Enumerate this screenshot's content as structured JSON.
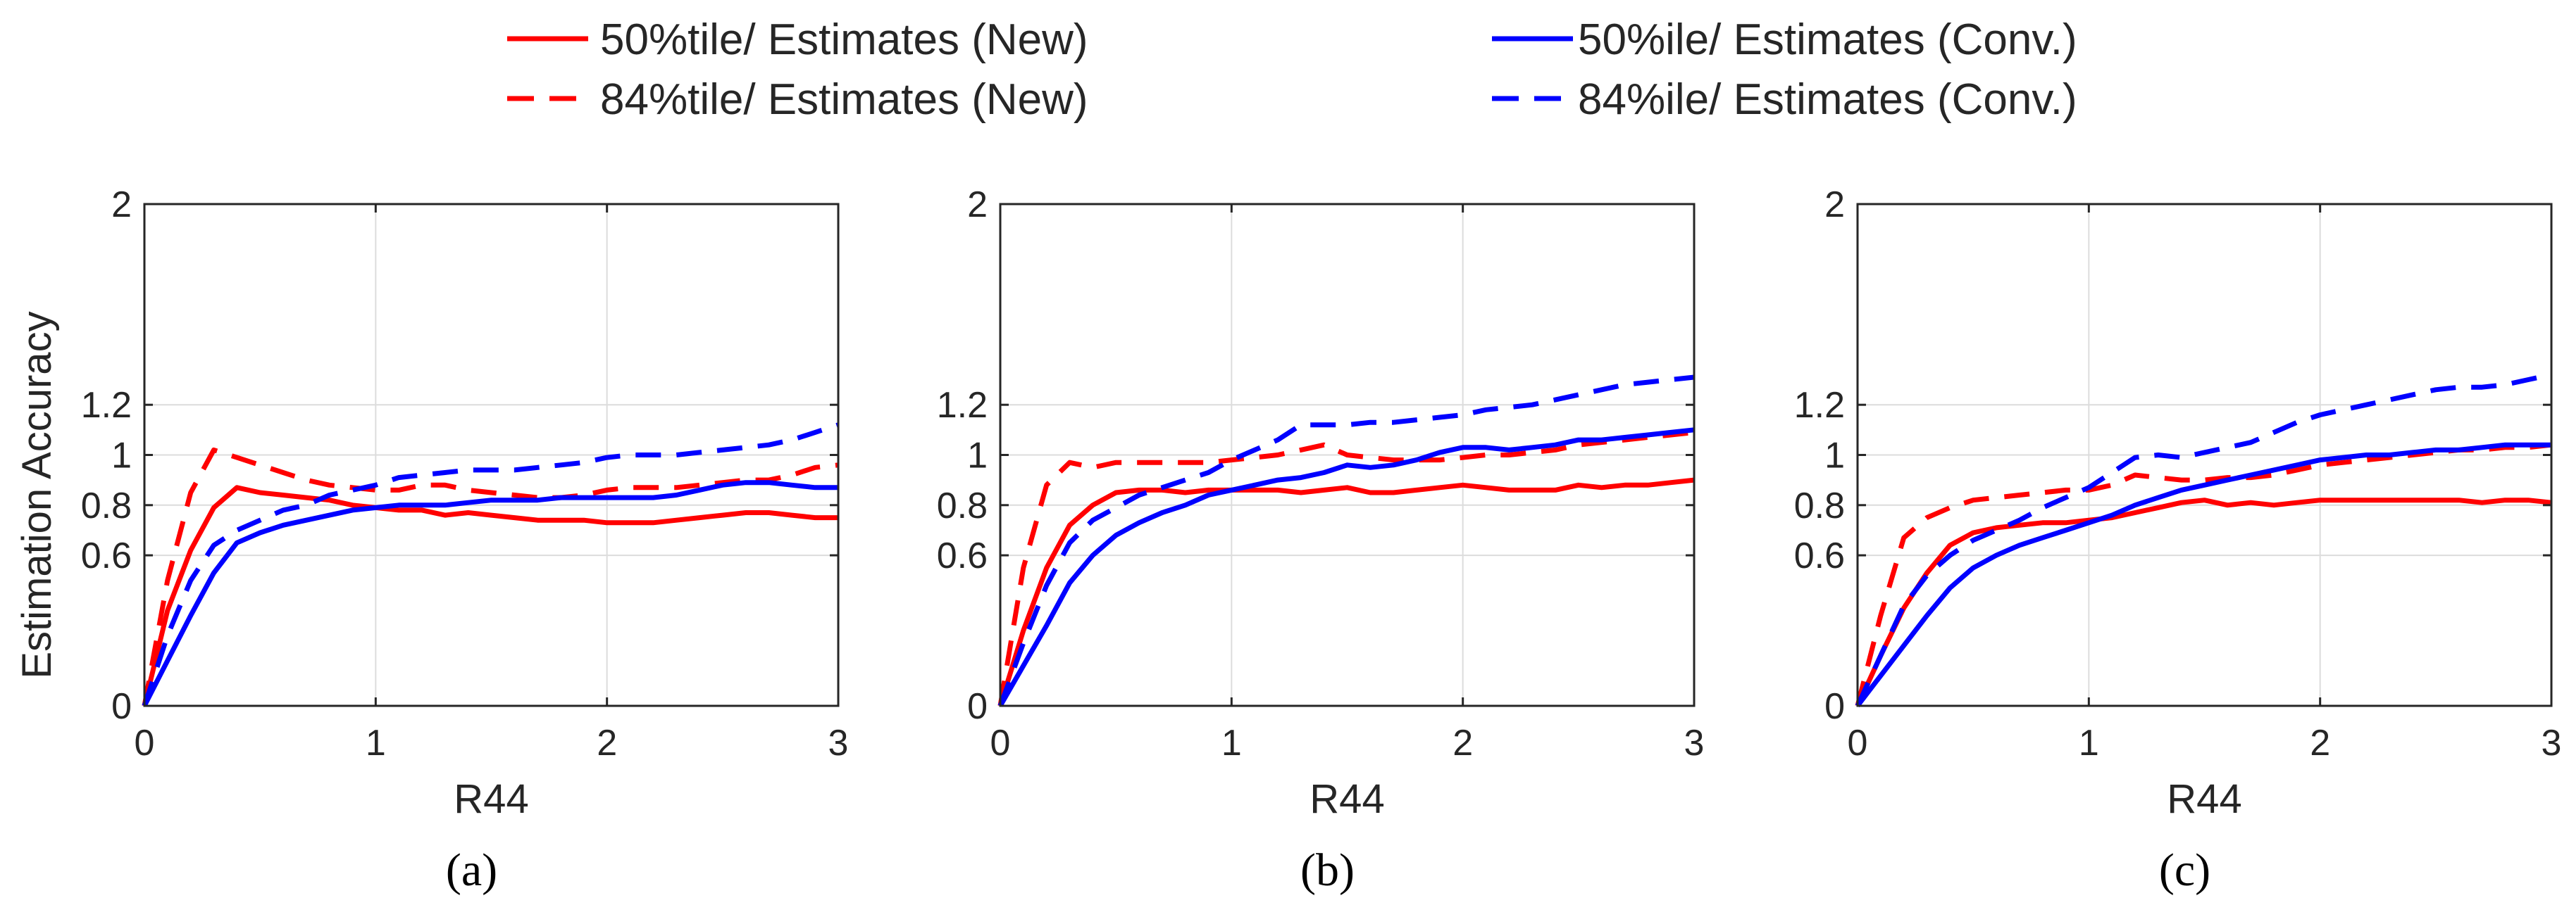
{
  "legend": {
    "placement": "top",
    "entries": [
      {
        "label": "50%tile/ Estimates (New)",
        "color": "#ff0000",
        "dash": "solid"
      },
      {
        "label": "84%tile/ Estimates (New)",
        "color": "#ff0000",
        "dash": "dashed"
      },
      {
        "label": "50%ile/ Estimates (Conv.)",
        "color": "#0000ff",
        "dash": "solid"
      },
      {
        "label": "84%ile/ Estimates (Conv.)",
        "color": "#0000ff",
        "dash": "dashed"
      }
    ]
  },
  "colors": {
    "new": "#ff0000",
    "conv": "#0000ff",
    "axis": "#262626",
    "grid": "#dcdcdc"
  },
  "chart_data": [
    {
      "type": "line",
      "caption": "(a)",
      "xlabel": "R44",
      "ylabel": "Estimation Accuracy",
      "xlim": [
        0,
        3
      ],
      "ylim": [
        0,
        2
      ],
      "xticks": [
        0,
        1,
        2,
        3
      ],
      "yticks": [
        0,
        0.6,
        0.8,
        1,
        1.2,
        2
      ],
      "ytick_labels": [
        "0",
        "0.6",
        "0.8",
        "1",
        "1.2",
        "2"
      ],
      "grid": true,
      "x": [
        0,
        0.1,
        0.2,
        0.3,
        0.4,
        0.5,
        0.6,
        0.7,
        0.8,
        0.9,
        1.0,
        1.1,
        1.2,
        1.3,
        1.4,
        1.5,
        1.6,
        1.7,
        1.8,
        1.9,
        2.0,
        2.1,
        2.2,
        2.3,
        2.4,
        2.5,
        2.6,
        2.7,
        2.8,
        2.9,
        3.0
      ],
      "series": [
        {
          "name": "50%tile/ Estimates (New)",
          "color": "#ff0000",
          "dash": "solid",
          "values": [
            0,
            0.38,
            0.62,
            0.79,
            0.87,
            0.85,
            0.84,
            0.83,
            0.82,
            0.8,
            0.79,
            0.78,
            0.78,
            0.76,
            0.77,
            0.76,
            0.75,
            0.74,
            0.74,
            0.74,
            0.73,
            0.73,
            0.73,
            0.74,
            0.75,
            0.76,
            0.77,
            0.77,
            0.76,
            0.75,
            0.75
          ]
        },
        {
          "name": "84%tile/ Estimates (New)",
          "color": "#ff0000",
          "dash": "dashed",
          "values": [
            0,
            0.5,
            0.85,
            1.02,
            0.99,
            0.96,
            0.93,
            0.9,
            0.88,
            0.87,
            0.86,
            0.86,
            0.88,
            0.88,
            0.86,
            0.85,
            0.84,
            0.83,
            0.83,
            0.84,
            0.86,
            0.87,
            0.87,
            0.87,
            0.88,
            0.89,
            0.9,
            0.9,
            0.92,
            0.95,
            0.96
          ]
        },
        {
          "name": "50%ile/ Estimates (Conv.)",
          "color": "#0000ff",
          "dash": "solid",
          "values": [
            0,
            0.18,
            0.36,
            0.53,
            0.65,
            0.69,
            0.72,
            0.74,
            0.76,
            0.78,
            0.79,
            0.8,
            0.8,
            0.8,
            0.81,
            0.82,
            0.82,
            0.82,
            0.83,
            0.83,
            0.83,
            0.83,
            0.83,
            0.84,
            0.86,
            0.88,
            0.89,
            0.89,
            0.88,
            0.87,
            0.87
          ]
        },
        {
          "name": "84%ile/ Estimates (Conv.)",
          "color": "#0000ff",
          "dash": "dashed",
          "values": [
            0,
            0.28,
            0.5,
            0.64,
            0.7,
            0.74,
            0.78,
            0.8,
            0.84,
            0.86,
            0.88,
            0.91,
            0.92,
            0.93,
            0.94,
            0.94,
            0.94,
            0.95,
            0.96,
            0.97,
            0.99,
            1.0,
            1.0,
            1.0,
            1.01,
            1.02,
            1.03,
            1.04,
            1.06,
            1.09,
            1.12
          ]
        }
      ]
    },
    {
      "type": "line",
      "caption": "(b)",
      "xlabel": "R44",
      "ylabel": "",
      "xlim": [
        0,
        3
      ],
      "ylim": [
        0,
        2
      ],
      "xticks": [
        0,
        1,
        2,
        3
      ],
      "yticks": [
        0,
        0.6,
        0.8,
        1,
        1.2,
        2
      ],
      "ytick_labels": [
        "0",
        "0.6",
        "0.8",
        "1",
        "1.2",
        "2"
      ],
      "grid": true,
      "x": [
        0,
        0.1,
        0.2,
        0.3,
        0.4,
        0.5,
        0.6,
        0.7,
        0.8,
        0.9,
        1.0,
        1.1,
        1.2,
        1.3,
        1.4,
        1.5,
        1.6,
        1.7,
        1.8,
        1.9,
        2.0,
        2.1,
        2.2,
        2.3,
        2.4,
        2.5,
        2.6,
        2.7,
        2.8,
        2.9,
        3.0
      ],
      "series": [
        {
          "name": "50%tile/ Estimates (New)",
          "color": "#ff0000",
          "dash": "solid",
          "values": [
            0,
            0.3,
            0.55,
            0.72,
            0.8,
            0.85,
            0.86,
            0.86,
            0.85,
            0.86,
            0.86,
            0.86,
            0.86,
            0.85,
            0.86,
            0.87,
            0.85,
            0.85,
            0.86,
            0.87,
            0.88,
            0.87,
            0.86,
            0.86,
            0.86,
            0.88,
            0.87,
            0.88,
            0.88,
            0.89,
            0.9
          ]
        },
        {
          "name": "84%tile/ Estimates (New)",
          "color": "#ff0000",
          "dash": "dashed",
          "values": [
            0,
            0.55,
            0.88,
            0.97,
            0.95,
            0.97,
            0.97,
            0.97,
            0.97,
            0.97,
            0.98,
            0.99,
            1.0,
            1.02,
            1.04,
            1.0,
            0.99,
            0.98,
            0.98,
            0.98,
            0.99,
            1.0,
            1.0,
            1.01,
            1.02,
            1.04,
            1.05,
            1.06,
            1.07,
            1.08,
            1.09
          ]
        },
        {
          "name": "50%ile/ Estimates (Conv.)",
          "color": "#0000ff",
          "dash": "solid",
          "values": [
            0,
            0.16,
            0.32,
            0.49,
            0.6,
            0.68,
            0.73,
            0.77,
            0.8,
            0.84,
            0.86,
            0.88,
            0.9,
            0.91,
            0.93,
            0.96,
            0.95,
            0.96,
            0.98,
            1.01,
            1.03,
            1.03,
            1.02,
            1.03,
            1.04,
            1.06,
            1.06,
            1.07,
            1.08,
            1.09,
            1.1
          ]
        },
        {
          "name": "84%ile/ Estimates (Conv.)",
          "color": "#0000ff",
          "dash": "dashed",
          "values": [
            0,
            0.25,
            0.48,
            0.65,
            0.74,
            0.79,
            0.84,
            0.87,
            0.9,
            0.93,
            0.98,
            1.02,
            1.06,
            1.12,
            1.12,
            1.12,
            1.13,
            1.13,
            1.14,
            1.15,
            1.16,
            1.18,
            1.19,
            1.2,
            1.22,
            1.24,
            1.26,
            1.28,
            1.29,
            1.3,
            1.31
          ]
        }
      ]
    },
    {
      "type": "line",
      "caption": "(c)",
      "xlabel": "R44",
      "ylabel": "",
      "xlim": [
        0,
        3
      ],
      "ylim": [
        0,
        2
      ],
      "xticks": [
        0,
        1,
        2,
        3
      ],
      "yticks": [
        0,
        0.6,
        0.8,
        1,
        1.2,
        2
      ],
      "ytick_labels": [
        "0",
        "0.6",
        "0.8",
        "1",
        "1.2",
        "2"
      ],
      "grid": true,
      "x": [
        0,
        0.1,
        0.2,
        0.3,
        0.4,
        0.5,
        0.6,
        0.7,
        0.8,
        0.9,
        1.0,
        1.1,
        1.2,
        1.3,
        1.4,
        1.5,
        1.6,
        1.7,
        1.8,
        1.9,
        2.0,
        2.1,
        2.2,
        2.3,
        2.4,
        2.5,
        2.6,
        2.7,
        2.8,
        2.9,
        3.0
      ],
      "series": [
        {
          "name": "50%tile/ Estimates (New)",
          "color": "#ff0000",
          "dash": "solid",
          "values": [
            0,
            0.2,
            0.39,
            0.53,
            0.64,
            0.69,
            0.71,
            0.72,
            0.73,
            0.73,
            0.74,
            0.75,
            0.77,
            0.79,
            0.81,
            0.82,
            0.8,
            0.81,
            0.8,
            0.81,
            0.82,
            0.82,
            0.82,
            0.82,
            0.82,
            0.82,
            0.82,
            0.81,
            0.82,
            0.82,
            0.81
          ]
        },
        {
          "name": "84%tile/ Estimates (New)",
          "color": "#ff0000",
          "dash": "dashed",
          "values": [
            0,
            0.36,
            0.67,
            0.75,
            0.79,
            0.82,
            0.83,
            0.84,
            0.85,
            0.86,
            0.86,
            0.88,
            0.92,
            0.91,
            0.9,
            0.9,
            0.91,
            0.91,
            0.92,
            0.94,
            0.96,
            0.97,
            0.98,
            0.99,
            1.0,
            1.01,
            1.02,
            1.02,
            1.03,
            1.03,
            1.04
          ]
        },
        {
          "name": "50%ile/ Estimates (Conv.)",
          "color": "#0000ff",
          "dash": "solid",
          "values": [
            0,
            0.12,
            0.24,
            0.36,
            0.47,
            0.55,
            0.6,
            0.64,
            0.67,
            0.7,
            0.73,
            0.76,
            0.8,
            0.83,
            0.86,
            0.88,
            0.9,
            0.92,
            0.94,
            0.96,
            0.98,
            0.99,
            1.0,
            1.0,
            1.01,
            1.02,
            1.02,
            1.03,
            1.04,
            1.04,
            1.04
          ]
        },
        {
          "name": "84%ile/ Estimates (Conv.)",
          "color": "#0000ff",
          "dash": "dashed",
          "values": [
            0,
            0.2,
            0.4,
            0.52,
            0.6,
            0.66,
            0.7,
            0.74,
            0.79,
            0.83,
            0.87,
            0.93,
            0.99,
            1.0,
            0.99,
            1.01,
            1.03,
            1.05,
            1.09,
            1.13,
            1.16,
            1.18,
            1.2,
            1.22,
            1.24,
            1.26,
            1.27,
            1.27,
            1.28,
            1.3,
            1.32
          ]
        }
      ]
    }
  ]
}
